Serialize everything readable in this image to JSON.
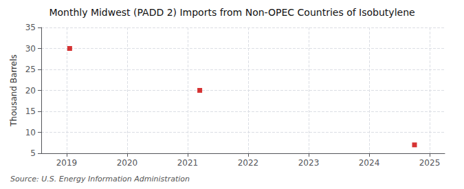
{
  "chart_data": {
    "type": "scatter",
    "title": "Monthly Midwest (PADD 2) Imports from Non-OPEC Countries of Isobutylene",
    "ylabel": "Thousand Barrels",
    "source": "Source: U.S. Energy Information Administration",
    "x": [
      2019.05,
      2021.2,
      2024.75
    ],
    "values": [
      30,
      20,
      7
    ],
    "color": "#cc0000",
    "marker": "square",
    "xlim": [
      2018.58,
      2025.25
    ],
    "xticks": [
      2019,
      2020,
      2021,
      2022,
      2023,
      2024,
      2025
    ],
    "ylim": [
      5,
      35
    ],
    "yticks": [
      5,
      10,
      15,
      20,
      25,
      30,
      35
    ],
    "grid": true
  }
}
